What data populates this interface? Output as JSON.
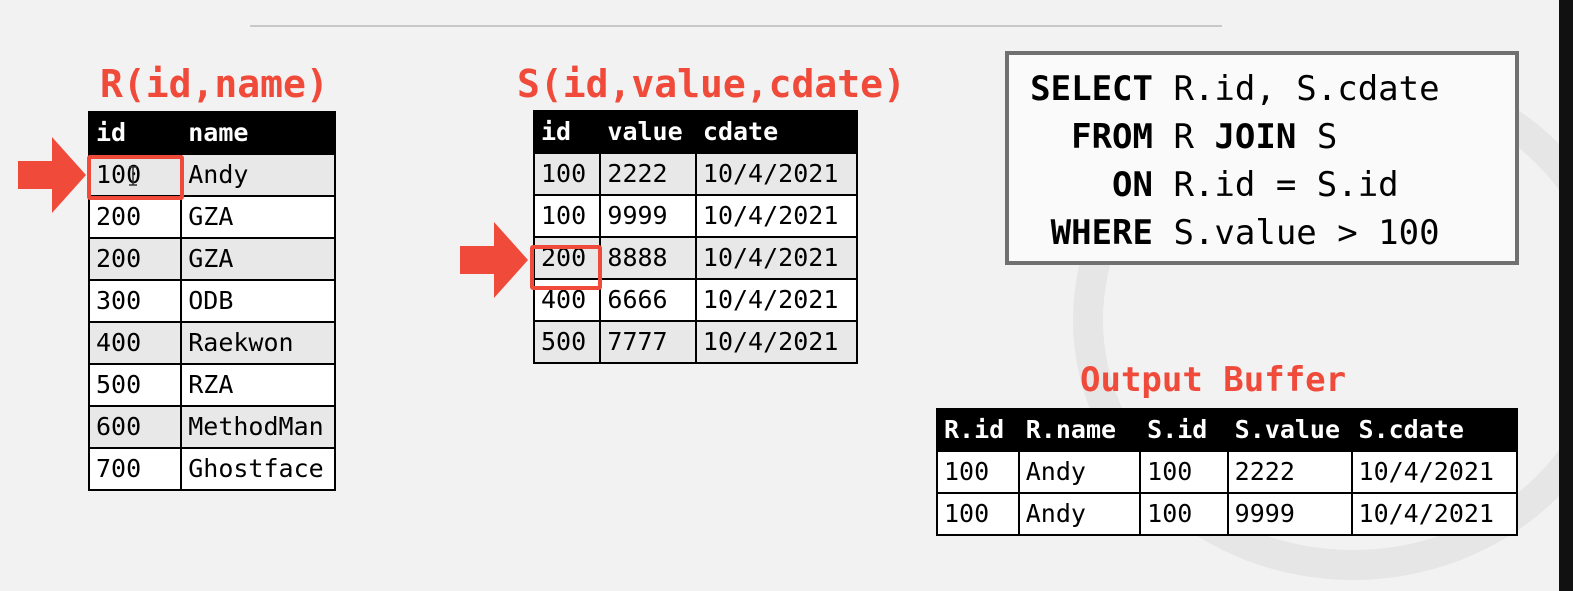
{
  "r_table": {
    "title": "R(id,name)",
    "headers": [
      "id",
      "name"
    ],
    "rows": [
      [
        "100",
        "Andy"
      ],
      [
        "200",
        "GZA"
      ],
      [
        "200",
        "GZA"
      ],
      [
        "300",
        "ODB"
      ],
      [
        "400",
        "Raekwon"
      ],
      [
        "500",
        "RZA"
      ],
      [
        "600",
        "MethodMan"
      ],
      [
        "700",
        "Ghostface"
      ]
    ]
  },
  "s_table": {
    "title": "S(id,value,cdate)",
    "headers": [
      "id",
      "value",
      "cdate"
    ],
    "rows": [
      [
        "100",
        "2222",
        "10/4/2021"
      ],
      [
        "100",
        "9999",
        "10/4/2021"
      ],
      [
        "200",
        "8888",
        "10/4/2021"
      ],
      [
        "400",
        "6666",
        "10/4/2021"
      ],
      [
        "500",
        "7777",
        "10/4/2021"
      ]
    ]
  },
  "query": {
    "lines": [
      {
        "kw": "SELECT",
        "text": "R.id, S.cdate"
      },
      {
        "kw": "FROM",
        "text": "R",
        "kw2": "JOIN",
        "text2": "S"
      },
      {
        "kw": "ON",
        "text": "R.id = S.id"
      },
      {
        "kw": "WHERE",
        "text": "S.value > 100"
      }
    ]
  },
  "output": {
    "title": "Output Buffer",
    "headers": [
      "R.id",
      "R.name",
      "S.id",
      "S.value",
      "S.cdate"
    ],
    "rows": [
      [
        "100",
        "Andy",
        "100",
        "2222",
        "10/4/2021"
      ],
      [
        "100",
        "Andy",
        "100",
        "9999",
        "10/4/2021"
      ]
    ]
  },
  "colors": {
    "accent": "#f04a3a",
    "header_bg": "#000000",
    "row_alt": "#e8e8e8"
  },
  "icons": {
    "r_pointer": "right-arrow-icon",
    "s_pointer": "right-arrow-icon",
    "cursor": "text-cursor-icon"
  }
}
